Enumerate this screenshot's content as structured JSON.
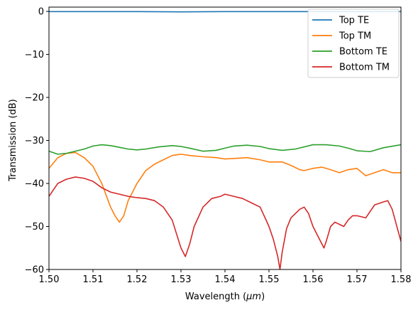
{
  "chart_data": {
    "type": "line",
    "title": "",
    "xlabel_prefix": "Wavelength (",
    "xlabel_unit": "μm",
    "xlabel_suffix": ")",
    "ylabel": "Transmission (dB)",
    "xlim": [
      1.5,
      1.58
    ],
    "ylim": [
      -60,
      1
    ],
    "xticks": [
      1.5,
      1.51,
      1.52,
      1.53,
      1.54,
      1.55,
      1.56,
      1.57,
      1.58
    ],
    "xtick_labels": [
      "1.50",
      "1.51",
      "1.52",
      "1.53",
      "1.54",
      "1.55",
      "1.56",
      "1.57",
      "1.58"
    ],
    "yticks": [
      0,
      -10,
      -20,
      -30,
      -40,
      -50,
      -60
    ],
    "ytick_labels": [
      "0",
      "−10",
      "−20",
      "−30",
      "−40",
      "−50",
      "−60"
    ],
    "grid": false,
    "legend_position": "top-right",
    "series": [
      {
        "name": "Top TE",
        "color": "#1f77b4",
        "x": [
          1.5,
          1.51,
          1.52,
          1.53,
          1.54,
          1.55,
          1.56,
          1.57,
          1.58
        ],
        "y": [
          -0.05,
          -0.05,
          -0.05,
          -0.1,
          -0.05,
          -0.05,
          -0.05,
          -0.05,
          -0.05
        ]
      },
      {
        "name": "Top TM",
        "color": "#ff7f0e",
        "x": [
          1.5,
          1.502,
          1.504,
          1.506,
          1.508,
          1.51,
          1.512,
          1.514,
          1.515,
          1.516,
          1.517,
          1.518,
          1.52,
          1.522,
          1.524,
          1.526,
          1.528,
          1.53,
          1.532,
          1.535,
          1.538,
          1.54,
          1.542,
          1.545,
          1.548,
          1.55,
          1.553,
          1.555,
          1.557,
          1.558,
          1.56,
          1.562,
          1.564,
          1.566,
          1.568,
          1.57,
          1.572,
          1.574,
          1.576,
          1.578,
          1.58
        ],
        "y": [
          -36.5,
          -34,
          -33,
          -32.8,
          -34,
          -36,
          -40,
          -45.5,
          -47.5,
          -49,
          -47.5,
          -44,
          -40,
          -37,
          -35.5,
          -34.5,
          -33.5,
          -33.2,
          -33.5,
          -33.8,
          -34,
          -34.3,
          -34.2,
          -34,
          -34.5,
          -35,
          -35,
          -35.8,
          -36.8,
          -37,
          -36.5,
          -36.2,
          -36.8,
          -37.5,
          -36.8,
          -36.5,
          -38.2,
          -37.5,
          -36.8,
          -37.5,
          -37.5
        ]
      },
      {
        "name": "Bottom TE",
        "color": "#2ca02c",
        "x": [
          1.5,
          1.502,
          1.504,
          1.506,
          1.508,
          1.51,
          1.512,
          1.514,
          1.516,
          1.518,
          1.52,
          1.522,
          1.525,
          1.528,
          1.53,
          1.532,
          1.535,
          1.538,
          1.54,
          1.542,
          1.545,
          1.548,
          1.55,
          1.553,
          1.556,
          1.56,
          1.563,
          1.566,
          1.568,
          1.57,
          1.573,
          1.576,
          1.58
        ],
        "y": [
          -32.5,
          -33.2,
          -33,
          -32.5,
          -32,
          -31.3,
          -31,
          -31.2,
          -31.6,
          -32,
          -32.2,
          -32,
          -31.5,
          -31.2,
          -31.4,
          -31.8,
          -32.5,
          -32.3,
          -31.8,
          -31.3,
          -31.1,
          -31.4,
          -31.9,
          -32.3,
          -32,
          -31,
          -31,
          -31.3,
          -31.8,
          -32.4,
          -32.6,
          -31.7,
          -31
        ]
      },
      {
        "name": "Bottom TM",
        "color": "#d62728",
        "x": [
          1.5,
          1.502,
          1.504,
          1.506,
          1.508,
          1.51,
          1.512,
          1.514,
          1.516,
          1.518,
          1.52,
          1.522,
          1.524,
          1.526,
          1.528,
          1.53,
          1.531,
          1.532,
          1.533,
          1.535,
          1.537,
          1.539,
          1.54,
          1.542,
          1.544,
          1.546,
          1.548,
          1.55,
          1.551,
          1.552,
          1.5525,
          1.553,
          1.554,
          1.555,
          1.557,
          1.558,
          1.559,
          1.56,
          1.561,
          1.562,
          1.5625,
          1.563,
          1.564,
          1.565,
          1.566,
          1.567,
          1.568,
          1.569,
          1.57,
          1.572,
          1.574,
          1.576,
          1.577,
          1.578,
          1.58
        ],
        "y": [
          -43,
          -40,
          -39,
          -38.5,
          -38.8,
          -39.5,
          -41,
          -42,
          -42.5,
          -43,
          -43.3,
          -43.5,
          -44,
          -45.5,
          -48.5,
          -55,
          -57,
          -54,
          -50,
          -45.5,
          -43.5,
          -43,
          -42.5,
          -43,
          -43.5,
          -44.5,
          -45.5,
          -50,
          -53,
          -57,
          -60,
          -56,
          -50.5,
          -48,
          -46,
          -45.5,
          -47,
          -50,
          -52,
          -54,
          -55,
          -53.5,
          -50,
          -49,
          -49.5,
          -50,
          -48.5,
          -47.5,
          -47.5,
          -48,
          -45,
          -44.3,
          -44,
          -46,
          -53.5
        ]
      }
    ]
  }
}
